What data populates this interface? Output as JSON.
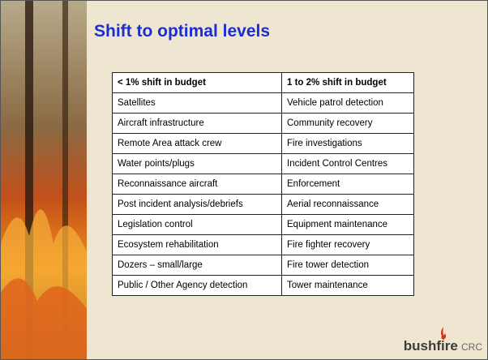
{
  "title": "Shift to optimal levels",
  "table": {
    "header": [
      "< 1% shift in budget",
      "1 to 2% shift in budget"
    ],
    "rows": [
      [
        "Satellites",
        "Vehicle patrol detection"
      ],
      [
        "Aircraft infrastructure",
        "Community recovery"
      ],
      [
        "Remote Area attack crew",
        "Fire investigations"
      ],
      [
        "Water points/plugs",
        "Incident Control Centres"
      ],
      [
        "Reconnaissance aircraft",
        "Enforcement"
      ],
      [
        "Post incident analysis/debriefs",
        "Aerial reconnaissance"
      ],
      [
        "Legislation control",
        "Equipment maintenance"
      ],
      [
        "Ecosystem rehabilitation",
        "Fire fighter recovery"
      ],
      [
        "Dozers – small/large",
        "Fire tower detection"
      ],
      [
        "Public / Other Agency detection",
        "Tower maintenance"
      ]
    ]
  },
  "logo": {
    "name": "bushfire",
    "suffix": "CRC"
  }
}
